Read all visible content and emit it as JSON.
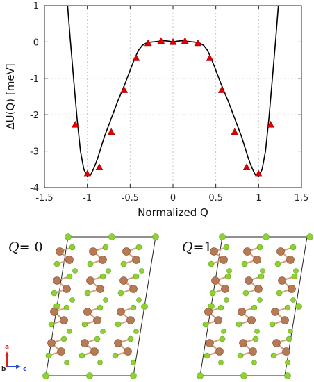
{
  "chart_data": {
    "type": "line",
    "title": "",
    "xlabel": "Normalized Q",
    "ylabel": "ΔU(Q)  [meV]",
    "xlim": [
      -1.5,
      1.5
    ],
    "ylim": [
      -4,
      1
    ],
    "x_ticks": [
      -1.5,
      -1,
      -0.5,
      0,
      0.5,
      1,
      1.5
    ],
    "x_tick_labels": [
      "-1.5",
      "-1",
      "-0.5",
      "0",
      "0.5",
      "1",
      "1.5"
    ],
    "y_ticks": [
      -4,
      -3,
      -2,
      -1,
      0,
      1
    ],
    "y_tick_labels": [
      "-4",
      "-3",
      "-2",
      "-1",
      "0",
      "1"
    ],
    "grid": true,
    "series": [
      {
        "kind": "fit_curve",
        "color": "#000000",
        "x": [
          -1.23,
          -1.2,
          -1.16,
          -1.12,
          -1.08,
          -1.04,
          -1.0,
          -0.96,
          -0.92,
          -0.88,
          -0.84,
          -0.8,
          -0.76,
          -0.72,
          -0.68,
          -0.64,
          -0.6,
          -0.56,
          -0.52,
          -0.48,
          -0.44,
          -0.4,
          -0.36,
          -0.32,
          -0.28,
          -0.24,
          -0.2,
          -0.16,
          -0.12,
          -0.08,
          -0.04,
          0.0,
          0.04,
          0.08,
          0.12,
          0.16,
          0.2,
          0.24,
          0.28,
          0.32,
          0.36,
          0.4,
          0.44,
          0.48,
          0.52,
          0.56,
          0.6,
          0.64,
          0.68,
          0.72,
          0.76,
          0.8,
          0.84,
          0.88,
          0.92,
          0.96,
          1.0,
          1.04,
          1.08,
          1.12,
          1.16,
          1.2,
          1.23
        ],
        "y": [
          1.0,
          0.1,
          -1.0,
          -2.1,
          -3.0,
          -3.5,
          -3.7,
          -3.65,
          -3.45,
          -3.2,
          -2.9,
          -2.6,
          -2.35,
          -2.1,
          -1.85,
          -1.6,
          -1.38,
          -1.15,
          -0.9,
          -0.65,
          -0.42,
          -0.22,
          -0.1,
          -0.04,
          -0.01,
          0.0,
          0.01,
          0.02,
          0.03,
          0.03,
          0.02,
          0.0,
          0.02,
          0.03,
          0.03,
          0.02,
          0.01,
          0.0,
          -0.01,
          -0.04,
          -0.1,
          -0.22,
          -0.42,
          -0.65,
          -0.9,
          -1.15,
          -1.38,
          -1.6,
          -1.85,
          -2.1,
          -2.35,
          -2.6,
          -2.9,
          -3.2,
          -3.45,
          -3.65,
          -3.7,
          -3.5,
          -3.0,
          -2.1,
          -1.0,
          0.1,
          1.0
        ]
      },
      {
        "kind": "points",
        "marker": "triangle",
        "color": "#e00000",
        "x": [
          -1.14,
          -1.0,
          -0.86,
          -0.72,
          -0.57,
          -0.43,
          -0.29,
          -0.14,
          0.0,
          0.14,
          0.29,
          0.43,
          0.57,
          0.72,
          0.86,
          1.0,
          1.14
        ],
        "y": [
          -2.27,
          -3.62,
          -3.44,
          -2.47,
          -1.32,
          -0.44,
          -0.03,
          0.03,
          0.0,
          0.03,
          -0.03,
          -0.44,
          -1.32,
          -2.47,
          -3.44,
          -3.62,
          -2.27
        ]
      }
    ]
  },
  "structures": [
    {
      "label_var": "Q",
      "label_value": "= 0"
    },
    {
      "label_var": "Q",
      "label_value": "=1"
    }
  ],
  "axes_key": {
    "a": "a",
    "b": "b",
    "c": "c",
    "a_color": "#d62020",
    "b_color": "#222222",
    "c_color": "#2050d0"
  },
  "colors": {
    "atom_cu": "#b87a55",
    "atom_light": "#8ed231",
    "bond": "#d6a07a",
    "cell": "#222222"
  }
}
